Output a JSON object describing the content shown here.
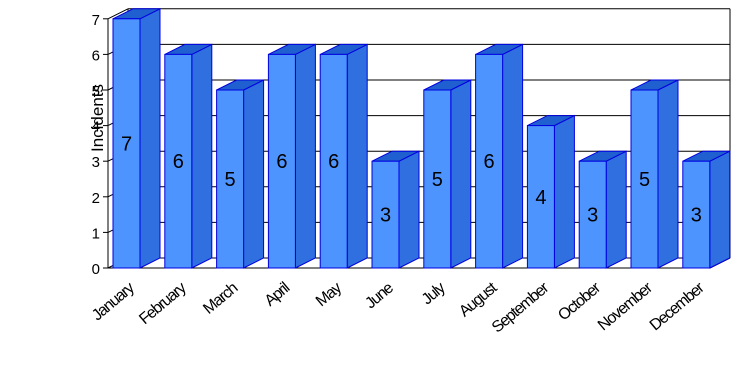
{
  "chart_data": {
    "type": "bar",
    "title": "",
    "xlabel": "",
    "ylabel": "Incidents",
    "categories": [
      "January",
      "February",
      "March",
      "April",
      "May",
      "June",
      "July",
      "August",
      "September",
      "October",
      "November",
      "December"
    ],
    "values": [
      7,
      6,
      5,
      6,
      6,
      3,
      5,
      6,
      4,
      3,
      5,
      3
    ],
    "ylim": [
      0,
      7
    ],
    "yticks": [
      0,
      1,
      2,
      3,
      4,
      5,
      6,
      7
    ],
    "grid": true,
    "three_d": true,
    "colors": {
      "bar_front": "#4d94ff",
      "bar_side": "#2f6fe0",
      "bar_top": "#1f5fcf",
      "bar_edge": "#0000e0",
      "grid": "#000000"
    }
  }
}
